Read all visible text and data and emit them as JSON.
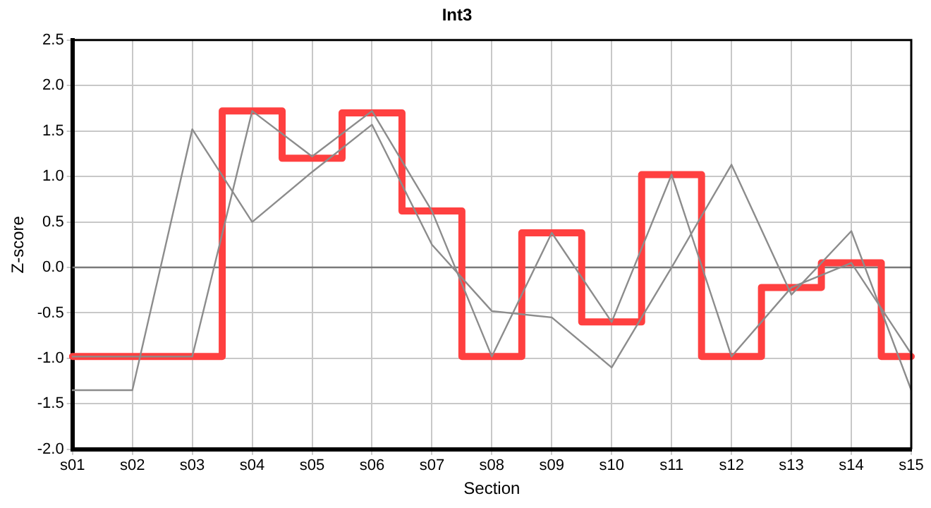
{
  "chart_data": {
    "type": "line",
    "title": "Int3",
    "xlabel": "Section",
    "ylabel": "Z-score",
    "categories": [
      "s01",
      "s02",
      "s03",
      "s04",
      "s05",
      "s06",
      "s07",
      "s08",
      "s09",
      "s10",
      "s11",
      "s12",
      "s13",
      "s14",
      "s15"
    ],
    "series": [
      {
        "type": "line",
        "color": "#8c8c8c",
        "values": [
          -1.35,
          -1.35,
          1.52,
          0.5,
          1.05,
          1.57,
          0.25,
          -0.48,
          -0.55,
          -1.1,
          0.0,
          1.13,
          -0.3,
          0.4,
          -1.35
        ]
      },
      {
        "type": "line",
        "color": "#8c8c8c",
        "values": [
          -0.98,
          -0.98,
          -0.98,
          1.72,
          1.22,
          1.72,
          0.62,
          -0.98,
          0.38,
          -0.6,
          1.02,
          -0.98,
          -0.22,
          0.05,
          -0.95
        ]
      },
      {
        "type": "step",
        "color": "#ff4040",
        "values": [
          -0.98,
          -0.98,
          -0.98,
          1.72,
          1.2,
          1.7,
          0.62,
          -0.98,
          0.38,
          -0.6,
          1.02,
          -0.98,
          -0.22,
          0.05,
          -0.98
        ]
      }
    ],
    "ylim": [
      -2.0,
      2.5
    ],
    "yticks": [
      {
        "value": -2,
        "label": "-2.0"
      },
      {
        "value": -1.5,
        "label": "-1.5"
      },
      {
        "value": -1,
        "label": "-1.0"
      },
      {
        "value": -0.5,
        "label": "-0.5"
      },
      {
        "value": 0,
        "label": "0.0"
      },
      {
        "value": 0.5,
        "label": "0.5"
      },
      {
        "value": 1,
        "label": "1.0"
      },
      {
        "value": 1.5,
        "label": "1.5"
      },
      {
        "value": 2,
        "label": "2.0"
      },
      {
        "value": 2.5,
        "label": "2.5"
      }
    ],
    "ref_lines": [
      {
        "axis": "y",
        "value": 0,
        "color": "#7a7a7a"
      }
    ],
    "grid": true,
    "legend": false,
    "marker": "none"
  }
}
